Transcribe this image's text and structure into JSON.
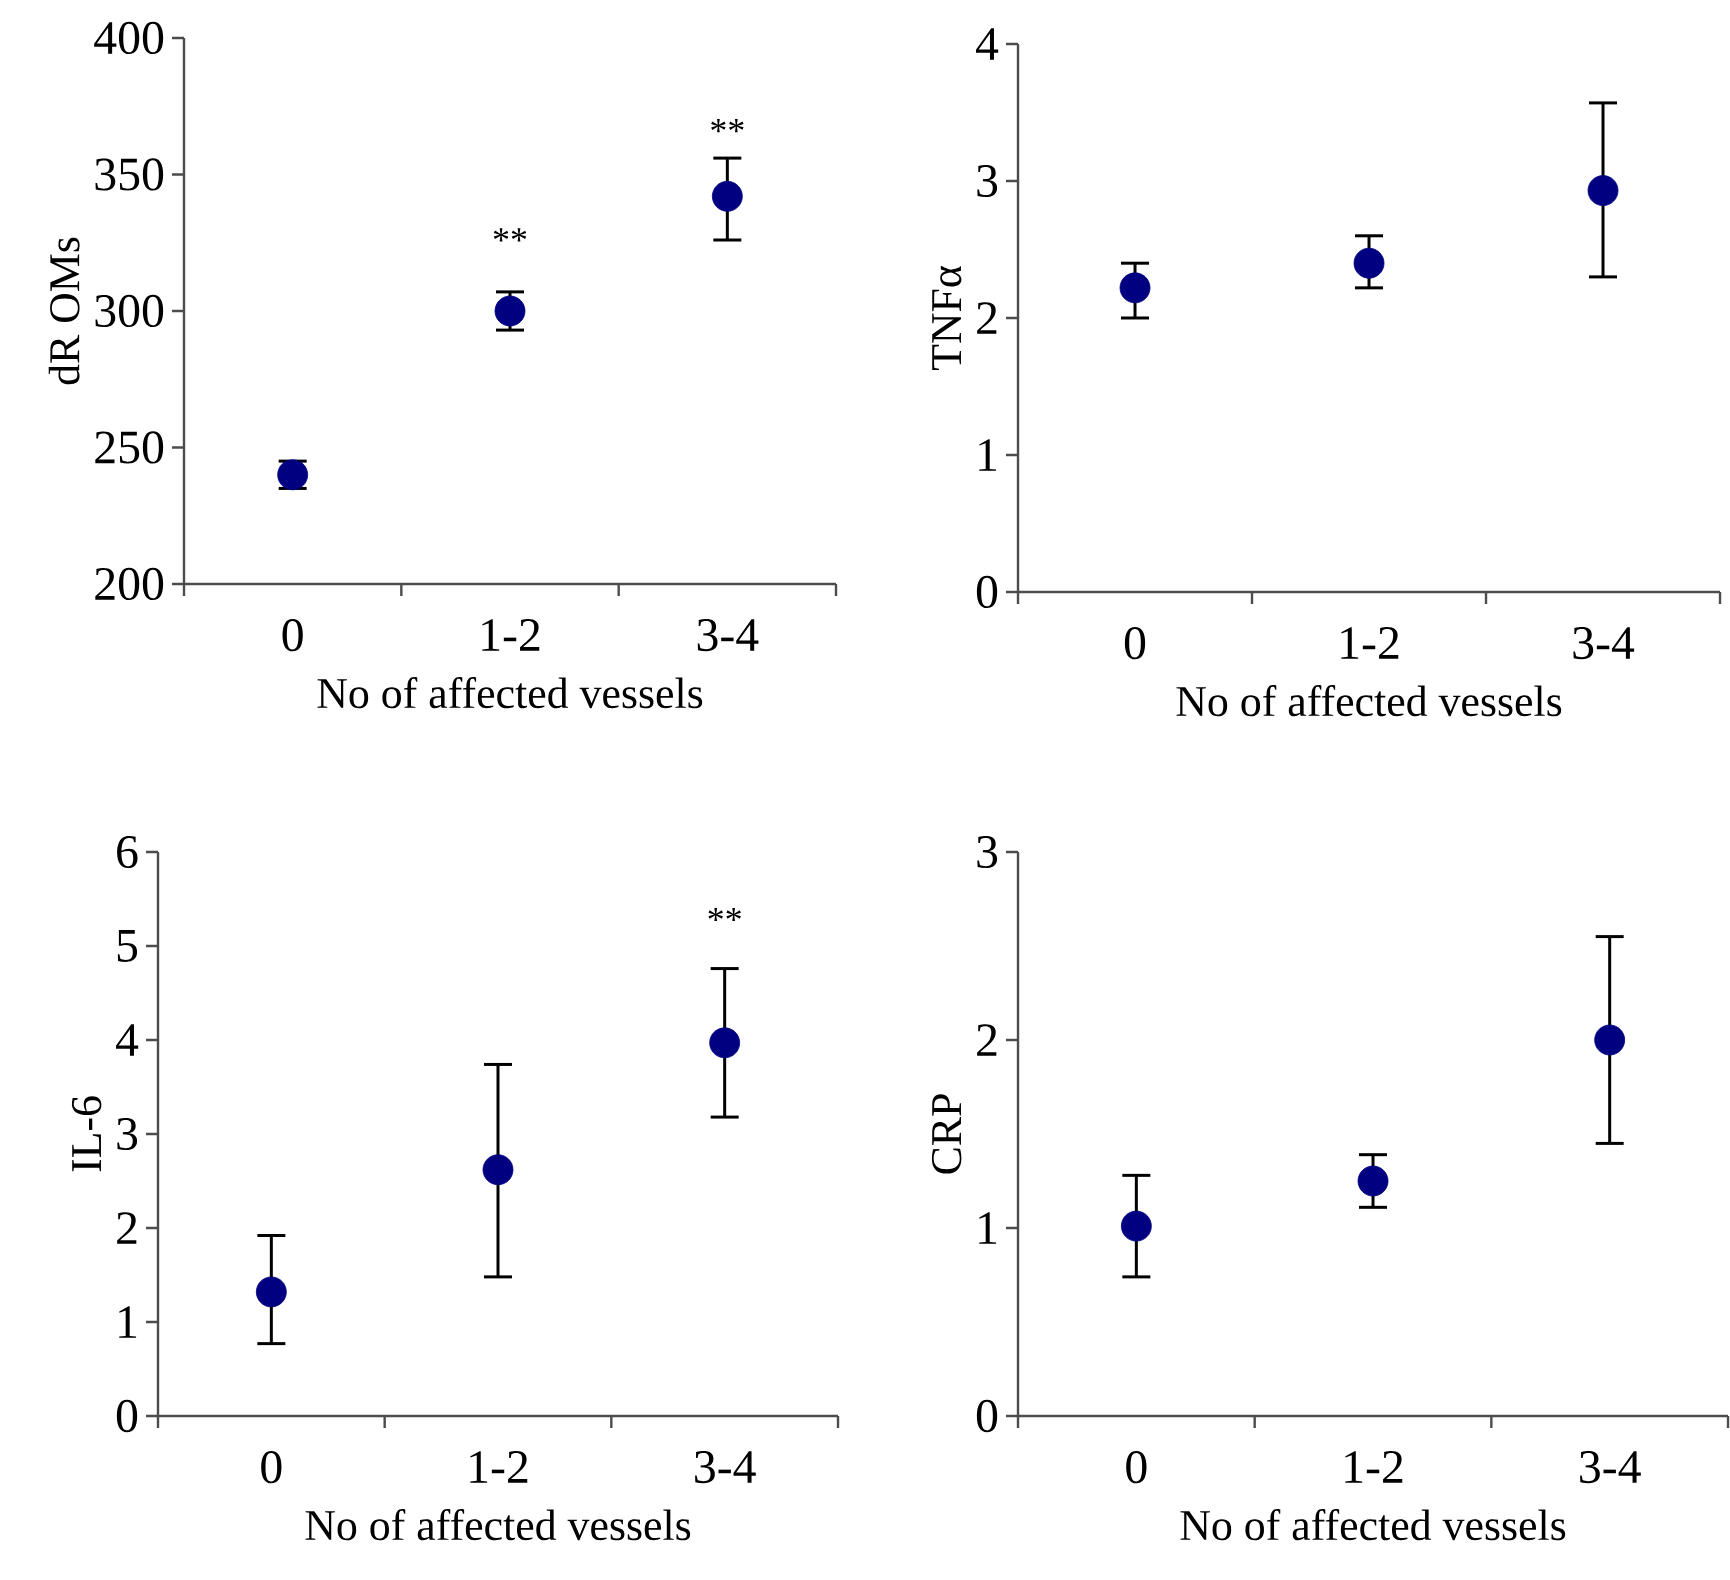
{
  "chart_data": [
    {
      "type": "scatter",
      "categories": [
        "0",
        "1-2",
        "3-4"
      ],
      "values": [
        240,
        300,
        342
      ],
      "errors": [
        [
          235,
          245
        ],
        [
          293,
          307
        ],
        [
          326,
          356
        ]
      ],
      "color": "#000080",
      "marker": "circle",
      "ylim": [
        200,
        400
      ],
      "yticks": [
        200,
        250,
        300,
        350,
        400
      ],
      "xlabel": "No of affected vessels",
      "ylabel": "dR OMs",
      "annotations": [
        "**",
        "**"
      ]
    },
    {
      "type": "scatter",
      "categories": [
        "0",
        "1-2",
        "3-4"
      ],
      "values": [
        2.22,
        2.4,
        2.93
      ],
      "errors": [
        [
          2.0,
          2.4
        ],
        [
          2.22,
          2.6
        ],
        [
          2.3,
          3.57
        ]
      ],
      "color": "#000080",
      "marker": "circle",
      "ylim": [
        0,
        4
      ],
      "yticks": [
        0,
        1,
        2,
        3,
        4
      ],
      "xlabel": "No of affected vessels",
      "ylabel": "TNFα"
    },
    {
      "type": "scatter",
      "categories": [
        "0",
        "1-2",
        "3-4"
      ],
      "values": [
        1.32,
        2.62,
        3.97
      ],
      "errors": [
        [
          0.77,
          1.92
        ],
        [
          1.48,
          3.74
        ],
        [
          3.18,
          4.76
        ]
      ],
      "color": "#000080",
      "marker": "circle",
      "ylim": [
        0,
        6
      ],
      "yticks": [
        0,
        1,
        2,
        3,
        4,
        5,
        6
      ],
      "xlabel": "No of affected vessels",
      "ylabel": "IL-6",
      "annotations": [
        "**"
      ]
    },
    {
      "type": "scatter",
      "categories": [
        "0",
        "1-2",
        "3-4"
      ],
      "values": [
        1.01,
        1.25,
        2.0
      ],
      "errors": [
        [
          0.74,
          1.28
        ],
        [
          1.11,
          1.39
        ],
        [
          1.45,
          2.55
        ]
      ],
      "color": "#000080",
      "marker": "circle",
      "ylim": [
        0,
        3
      ],
      "yticks": [
        0,
        1,
        2,
        3
      ],
      "xlabel": "No of affected vessels",
      "ylabel": "CRP"
    }
  ]
}
